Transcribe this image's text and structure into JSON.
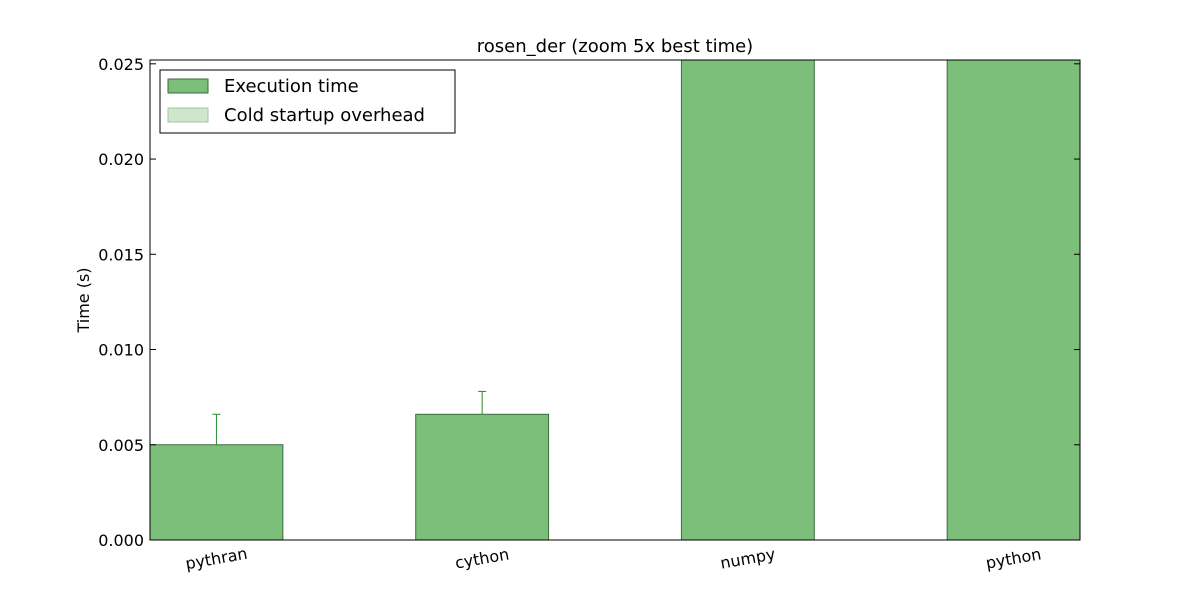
{
  "chart_data": {
    "type": "bar",
    "title": "rosen_der (zoom 5x best time)",
    "xlabel": "",
    "ylabel": "Time (s)",
    "categories": [
      "pythran",
      "cython",
      "numpy",
      "python"
    ],
    "series": [
      {
        "name": "Execution time",
        "values": [
          0.005,
          0.0066,
          0.0252,
          0.0252
        ],
        "error": [
          0.0016,
          0.0012,
          0,
          0
        ],
        "color": "#7bbf7b"
      },
      {
        "name": "Cold startup overhead",
        "values": [
          0,
          0,
          0,
          0
        ],
        "color": "#cde6cd"
      }
    ],
    "ylim": [
      0,
      0.0252
    ],
    "yticks": [
      "0.000",
      "0.005",
      "0.010",
      "0.015",
      "0.020",
      "0.025"
    ],
    "ytick_values": [
      0,
      0.005,
      0.01,
      0.015,
      0.02,
      0.025
    ],
    "legend_position": "top-left",
    "grid": false,
    "error_color": "#2a8a2a",
    "bar_edge_color": "#3d6b3d"
  }
}
